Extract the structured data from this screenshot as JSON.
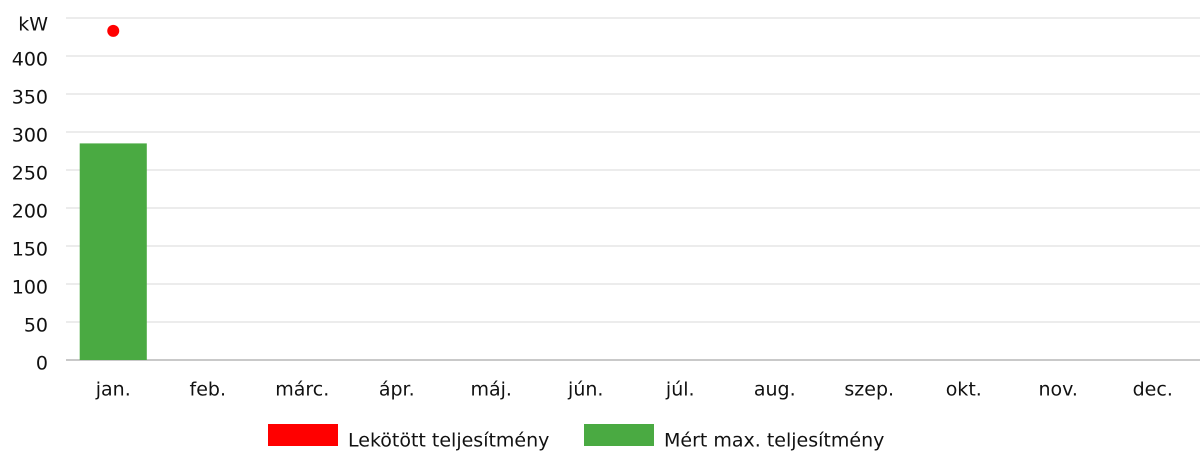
{
  "chart_data": {
    "type": "bar",
    "categories": [
      "jan.",
      "feb.",
      "márc.",
      "ápr.",
      "máj.",
      "jún.",
      "júl.",
      "aug.",
      "szep.",
      "okt.",
      "nov.",
      "dec."
    ],
    "series": [
      {
        "name": "Lekötött teljesítmény",
        "color": "#ff0000",
        "type": "scatter",
        "values": [
          433,
          null,
          null,
          null,
          null,
          null,
          null,
          null,
          null,
          null,
          null,
          null
        ]
      },
      {
        "name": "Mért max. teljesítmény",
        "color": "#4aaa42",
        "type": "bar",
        "values": [
          285,
          null,
          null,
          null,
          null,
          null,
          null,
          null,
          null,
          null,
          null,
          null
        ]
      }
    ],
    "ylim": [
      0,
      450
    ],
    "yticks": [
      0,
      50,
      100,
      150,
      200,
      250,
      300,
      350,
      400,
      {
        "value": 450,
        "label": "kW"
      }
    ],
    "grid": true
  }
}
